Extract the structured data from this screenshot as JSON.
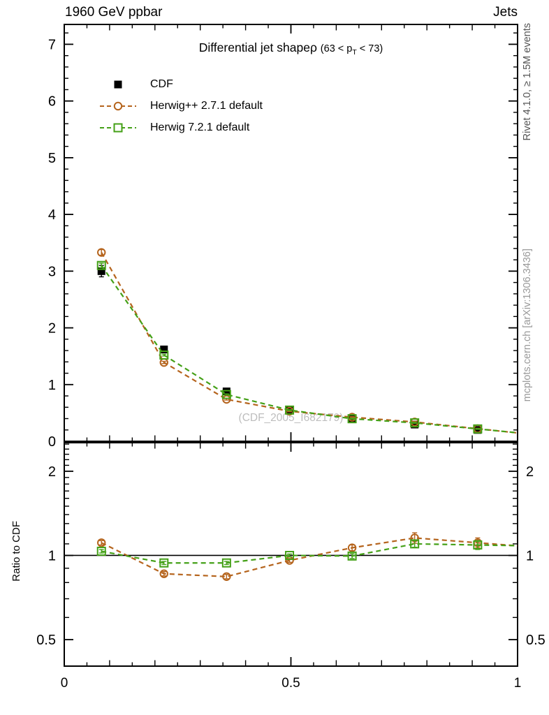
{
  "page": {
    "header_left": "1960 GeV ppbar",
    "header_right": "Jets",
    "rivet_label": "Rivet 4.1.0, ≥ 1.5M events",
    "mcplots_label": "mcplots.cern.ch [arXiv:1306.3436]",
    "watermark": "(CDF_2005_I682179)"
  },
  "title": {
    "main": "Differential jet shapeρ",
    "paren_open": "(63 < p",
    "sub": "T",
    "paren_close": " < 73)"
  },
  "chart_data": {
    "type": "line",
    "title": "Differential jet shape rho (63 < pT < 73)",
    "legend_position": "top-left inside",
    "grid": false,
    "x": [
      0.082,
      0.22,
      0.358,
      0.497,
      0.635,
      0.773,
      0.912
    ],
    "series": [
      {
        "name": "CDF",
        "role": "reference-data",
        "marker": "filled-square",
        "color": "#000000",
        "linestyle": "none",
        "values": [
          3.0,
          1.62,
          0.88,
          0.55,
          0.4,
          0.295,
          0.2
        ],
        "yerr": [
          0.1,
          0.055,
          0.035,
          0.022,
          0.018,
          0.014,
          0.01
        ]
      },
      {
        "name": "Herwig++ 2.7.1 default",
        "role": "mc-prediction",
        "marker": "open-circle",
        "color": "#b5641d",
        "linestyle": "dashed",
        "values": [
          3.33,
          1.39,
          0.74,
          0.53,
          0.425,
          0.34,
          0.222
        ],
        "yerr": [
          0.05,
          0.02,
          0.013,
          0.009,
          0.009,
          0.011,
          0.008
        ],
        "ratio": [
          1.11,
          0.86,
          0.84,
          0.96,
          1.065,
          1.155,
          1.11
        ],
        "ratio_err": [
          0.02,
          0.015,
          0.015,
          0.015,
          0.025,
          0.05,
          0.045
        ]
      },
      {
        "name": "Herwig 7.2.1 default",
        "role": "mc-prediction",
        "marker": "open-square",
        "color": "#44a017",
        "linestyle": "dashed",
        "values": [
          3.1,
          1.52,
          0.825,
          0.55,
          0.398,
          0.325,
          0.218
        ],
        "yerr": [
          0.04,
          0.016,
          0.011,
          0.008,
          0.008,
          0.009,
          0.007
        ],
        "ratio": [
          1.035,
          0.94,
          0.94,
          1.0,
          0.995,
          1.1,
          1.09
        ],
        "ratio_err": [
          0.015,
          0.012,
          0.012,
          0.012,
          0.02,
          0.03,
          0.04
        ]
      }
    ],
    "x_axis": {
      "lim": [
        0,
        1.0
      ],
      "major": [
        0,
        0.5,
        1
      ],
      "labels": [
        "0",
        "0.5",
        "1"
      ],
      "medium_step": 0.1,
      "minor_step": 0.05
    },
    "main_axis": {
      "ylim": [
        0,
        7.35
      ],
      "major": [
        0,
        1,
        2,
        3,
        4,
        5,
        6,
        7
      ],
      "labels": [
        "0",
        "1",
        "2",
        "3",
        "4",
        "5",
        "6",
        "7"
      ],
      "minor_step": 0.2
    },
    "ratio_axis": {
      "label": "Ratio to CDF",
      "scale": "log",
      "ylim": [
        0.402,
        2.53
      ],
      "major": [
        0.5,
        1,
        2
      ],
      "labels": [
        "0.5",
        "1",
        "2"
      ],
      "minors": [
        0.6,
        0.7,
        0.8,
        0.9,
        1.1,
        1.2,
        1.3,
        1.4,
        1.5,
        1.6,
        1.7,
        1.8,
        1.9,
        2.1,
        2.2,
        2.3,
        2.4,
        2.5
      ],
      "reference_line": 1.0
    }
  }
}
